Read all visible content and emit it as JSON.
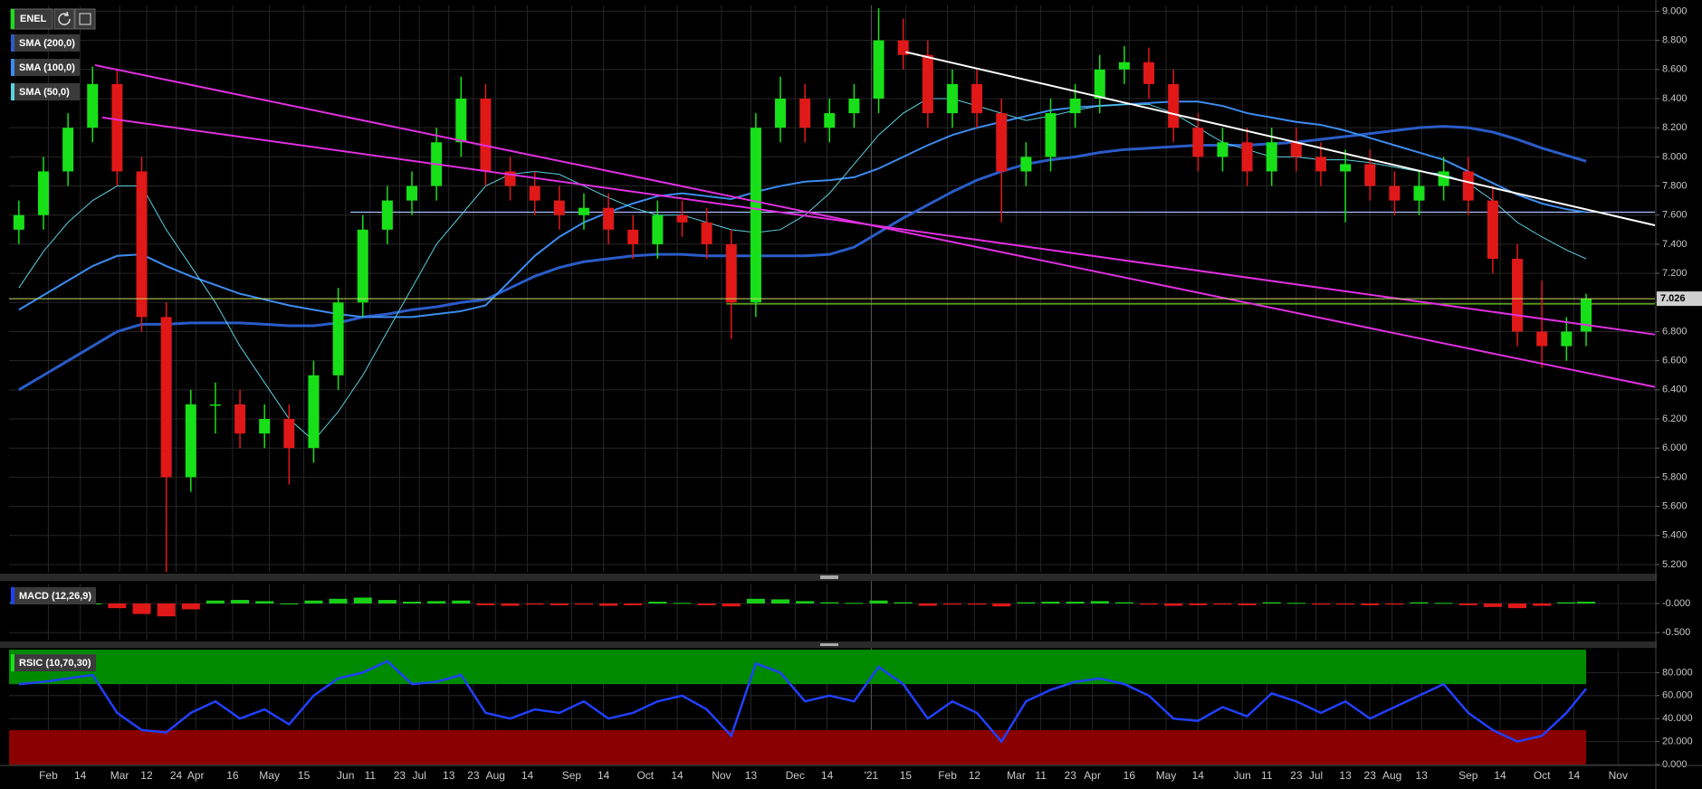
{
  "chart_data": [
    {
      "type": "candlestick",
      "symbol": "ENEL",
      "x": [
        -12,
        -2,
        8,
        18,
        28,
        38,
        48,
        58,
        68,
        78,
        88,
        98,
        108,
        118,
        128,
        138,
        148,
        158,
        168,
        178,
        188,
        198,
        208,
        218,
        228,
        238,
        248,
        258,
        268,
        278,
        288,
        298,
        308,
        318,
        328,
        338,
        348,
        358,
        368,
        378,
        388,
        398,
        408,
        418,
        428,
        438,
        448,
        458,
        468,
        478,
        488,
        498,
        508,
        518,
        528,
        538,
        548,
        558,
        568,
        578,
        588,
        598,
        608,
        618,
        626
      ],
      "open": [
        7.5,
        7.6,
        7.9,
        8.2,
        8.5,
        7.9,
        6.9,
        5.8,
        6.3,
        6.3,
        6.1,
        6.2,
        6.0,
        6.5,
        7.0,
        7.5,
        7.7,
        7.8,
        8.1,
        8.4,
        7.9,
        7.8,
        7.7,
        7.6,
        7.65,
        7.5,
        7.4,
        7.6,
        7.55,
        7.4,
        7.0,
        8.2,
        8.4,
        8.2,
        8.3,
        8.4,
        8.8,
        8.7,
        8.3,
        8.5,
        8.3,
        7.9,
        8.0,
        8.3,
        8.4,
        8.6,
        8.65,
        8.5,
        8.2,
        8.0,
        8.1,
        7.9,
        8.1,
        8.0,
        7.9,
        7.95,
        7.8,
        7.7,
        7.8,
        7.9,
        7.7,
        7.3,
        6.8,
        6.7,
        6.8
      ],
      "high": [
        7.7,
        8.0,
        8.3,
        8.62,
        8.6,
        8.0,
        7.0,
        6.4,
        6.45,
        6.4,
        6.3,
        6.3,
        6.6,
        7.1,
        7.6,
        7.8,
        7.9,
        8.2,
        8.55,
        8.5,
        8.0,
        7.9,
        7.8,
        7.75,
        7.75,
        7.6,
        7.7,
        7.7,
        7.65,
        7.5,
        8.3,
        8.55,
        8.5,
        8.4,
        8.5,
        9.02,
        8.95,
        8.8,
        8.6,
        8.6,
        8.4,
        8.1,
        8.4,
        8.5,
        8.7,
        8.76,
        8.75,
        8.6,
        8.3,
        8.2,
        8.2,
        8.2,
        8.2,
        8.1,
        8.05,
        8.05,
        7.9,
        7.9,
        8.0,
        8.0,
        7.8,
        7.4,
        7.15,
        6.9,
        7.06
      ],
      "low": [
        7.4,
        7.5,
        7.8,
        8.1,
        7.8,
        6.8,
        5.15,
        5.7,
        6.1,
        6.0,
        6.0,
        5.75,
        5.9,
        6.4,
        6.9,
        7.4,
        7.6,
        7.7,
        8.0,
        7.8,
        7.7,
        7.6,
        7.5,
        7.5,
        7.4,
        7.3,
        7.3,
        7.45,
        7.3,
        6.75,
        6.9,
        8.1,
        8.1,
        8.1,
        8.2,
        8.3,
        8.6,
        8.2,
        8.2,
        8.2,
        7.55,
        7.8,
        7.9,
        8.2,
        8.3,
        8.5,
        8.4,
        8.1,
        7.9,
        7.9,
        7.8,
        7.8,
        7.9,
        7.8,
        7.55,
        7.7,
        7.6,
        7.6,
        7.7,
        7.6,
        7.2,
        6.7,
        6.55,
        6.6,
        6.7
      ],
      "close": [
        7.6,
        7.9,
        8.2,
        8.5,
        7.9,
        6.9,
        5.8,
        6.3,
        6.3,
        6.1,
        6.2,
        6.0,
        6.5,
        7.0,
        7.5,
        7.7,
        7.8,
        8.1,
        8.4,
        7.9,
        7.8,
        7.7,
        7.6,
        7.65,
        7.5,
        7.4,
        7.6,
        7.55,
        7.4,
        7.0,
        8.2,
        8.4,
        8.2,
        8.3,
        8.4,
        8.8,
        8.7,
        8.3,
        8.5,
        8.3,
        7.9,
        8.0,
        8.3,
        8.4,
        8.6,
        8.65,
        8.5,
        8.2,
        8.0,
        8.1,
        7.9,
        8.1,
        8.0,
        7.9,
        7.95,
        7.8,
        7.7,
        7.8,
        7.9,
        7.7,
        7.3,
        6.8,
        6.7,
        6.8,
        7.026
      ],
      "up_color": "#18e018",
      "down_color": "#e01818",
      "series": [
        {
          "name": "SMA (200,0)",
          "color": "#2a5cc8",
          "width": 3,
          "values": [
            6.4,
            6.5,
            6.6,
            6.7,
            6.8,
            6.85,
            6.85,
            6.86,
            6.86,
            6.86,
            6.85,
            6.84,
            6.84,
            6.86,
            6.9,
            6.92,
            6.95,
            6.97,
            7.0,
            7.02,
            7.1,
            7.18,
            7.24,
            7.28,
            7.3,
            7.32,
            7.33,
            7.33,
            7.32,
            7.32,
            7.32,
            7.32,
            7.32,
            7.33,
            7.38,
            7.48,
            7.58,
            7.67,
            7.76,
            7.84,
            7.9,
            7.95,
            7.98,
            8.0,
            8.03,
            8.05,
            8.06,
            8.07,
            8.08,
            8.08,
            8.08,
            8.09,
            8.1,
            8.12,
            8.14,
            8.16,
            8.18,
            8.2,
            8.21,
            8.2,
            8.17,
            8.12,
            8.06,
            8.01,
            7.97
          ]
        },
        {
          "name": "SMA (100,0)",
          "color": "#3c8cf0",
          "width": 2,
          "values": [
            6.95,
            7.05,
            7.15,
            7.25,
            7.32,
            7.33,
            7.25,
            7.18,
            7.12,
            7.06,
            7.02,
            6.98,
            6.95,
            6.92,
            6.9,
            6.9,
            6.9,
            6.92,
            6.94,
            6.98,
            7.15,
            7.32,
            7.45,
            7.55,
            7.62,
            7.68,
            7.73,
            7.75,
            7.73,
            7.71,
            7.76,
            7.8,
            7.83,
            7.84,
            7.86,
            7.92,
            8.0,
            8.08,
            8.15,
            8.2,
            8.24,
            8.28,
            8.32,
            8.34,
            8.35,
            8.36,
            8.37,
            8.38,
            8.38,
            8.35,
            8.3,
            8.27,
            8.24,
            8.22,
            8.18,
            8.13,
            8.08,
            8.03,
            7.98,
            7.9,
            7.82,
            7.74,
            7.68,
            7.64,
            7.62
          ]
        },
        {
          "name": "SMA (50,0)",
          "color": "#5ad0e0",
          "width": 1,
          "values": [
            7.1,
            7.35,
            7.55,
            7.7,
            7.8,
            7.8,
            7.5,
            7.25,
            7.0,
            6.7,
            6.45,
            6.2,
            6.05,
            6.25,
            6.5,
            6.8,
            7.1,
            7.4,
            7.6,
            7.8,
            7.88,
            7.9,
            7.88,
            7.8,
            7.72,
            7.65,
            7.6,
            7.6,
            7.55,
            7.5,
            7.48,
            7.5,
            7.6,
            7.75,
            7.95,
            8.15,
            8.3,
            8.4,
            8.4,
            8.35,
            8.3,
            8.25,
            8.28,
            8.32,
            8.35,
            8.36,
            8.36,
            8.3,
            8.2,
            8.1,
            8.05,
            8.0,
            8.0,
            7.98,
            7.98,
            7.96,
            7.93,
            7.9,
            7.88,
            7.82,
            7.7,
            7.55,
            7.45,
            7.36,
            7.3
          ]
        }
      ],
      "lines": [
        {
          "color": "#e030e0",
          "x": [
            19,
            654
          ],
          "y": [
            8.63,
            6.42
          ]
        },
        {
          "color": "#e030e0",
          "x": [
            22,
            654
          ],
          "y": [
            8.27,
            6.78
          ]
        },
        {
          "color": "#ffffff",
          "x": [
            349,
            654
          ],
          "y": [
            8.72,
            7.53
          ]
        }
      ],
      "hlines": [
        {
          "value": 7.62,
          "color": "#a8c0ff",
          "from": 123
        },
        {
          "value": 6.99,
          "color": "#70d020",
          "from": 276
        }
      ],
      "price_line_color": "#c8e060",
      "ylim": [
        5.15,
        9.04
      ],
      "yticks": [
        {
          "value": 5.2,
          "label": "5.200"
        },
        {
          "value": 5.4,
          "label": "5.400"
        },
        {
          "value": 5.6,
          "label": "5.600"
        },
        {
          "value": 5.8,
          "label": "5.800"
        },
        {
          "value": 6.0,
          "label": "6.000"
        },
        {
          "value": 6.2,
          "label": "6.200"
        },
        {
          "value": 6.4,
          "label": "6.400"
        },
        {
          "value": 6.6,
          "label": "6.600"
        },
        {
          "value": 6.8,
          "label": "6.800"
        },
        {
          "value": 7.0,
          "label": "7.000"
        },
        {
          "value": 7.2,
          "label": "7.200"
        },
        {
          "value": 7.4,
          "label": "7.400"
        },
        {
          "value": 7.6,
          "label": "7.600"
        },
        {
          "value": 7.8,
          "label": "7.800"
        },
        {
          "value": 8.0,
          "label": "8.000"
        },
        {
          "value": 8.2,
          "label": "8.200"
        },
        {
          "value": 8.4,
          "label": "8.400"
        },
        {
          "value": 8.6,
          "label": "8.600"
        },
        {
          "value": 8.8,
          "label": "8.800"
        },
        {
          "value": 9.0,
          "label": "9.000"
        }
      ],
      "xlim": [
        -16,
        654
      ],
      "xticks": [
        {
          "value": 0,
          "label": "Feb"
        },
        {
          "value": 13,
          "label": "14"
        },
        {
          "value": 29,
          "label": "Mar"
        },
        {
          "value": 40,
          "label": "12"
        },
        {
          "value": 52,
          "label": "24"
        },
        {
          "value": 60,
          "label": "Apr"
        },
        {
          "value": 75,
          "label": "16"
        },
        {
          "value": 90,
          "label": "May"
        },
        {
          "value": 104,
          "label": "15"
        },
        {
          "value": 121,
          "label": "Jun"
        },
        {
          "value": 131,
          "label": "11"
        },
        {
          "value": 143,
          "label": "23"
        },
        {
          "value": 151,
          "label": "Jul"
        },
        {
          "value": 163,
          "label": "13"
        },
        {
          "value": 173,
          "label": "23"
        },
        {
          "value": 182,
          "label": "Aug"
        },
        {
          "value": 195,
          "label": "14"
        },
        {
          "value": 213,
          "label": "Sep"
        },
        {
          "value": 226,
          "label": "14"
        },
        {
          "value": 243,
          "label": "Oct"
        },
        {
          "value": 256,
          "label": "14"
        },
        {
          "value": 274,
          "label": "Nov"
        },
        {
          "value": 286,
          "label": "13"
        },
        {
          "value": 304,
          "label": "Dec"
        },
        {
          "value": 317,
          "label": "14"
        },
        {
          "value": 335,
          "label": "'21"
        },
        {
          "value": 349,
          "label": "15"
        },
        {
          "value": 366,
          "label": "Feb"
        },
        {
          "value": 377,
          "label": "12"
        },
        {
          "value": 394,
          "label": "Mar"
        },
        {
          "value": 404,
          "label": "11"
        },
        {
          "value": 416,
          "label": "23"
        },
        {
          "value": 425,
          "label": "Apr"
        },
        {
          "value": 440,
          "label": "16"
        },
        {
          "value": 455,
          "label": "May"
        },
        {
          "value": 468,
          "label": "14"
        },
        {
          "value": 486,
          "label": "Jun"
        },
        {
          "value": 496,
          "label": "11"
        },
        {
          "value": 508,
          "label": "23"
        },
        {
          "value": 516,
          "label": "Jul"
        },
        {
          "value": 528,
          "label": "13"
        },
        {
          "value": 538,
          "label": "23"
        },
        {
          "value": 547,
          "label": "Aug"
        },
        {
          "value": 559,
          "label": "13"
        },
        {
          "value": 578,
          "label": "Sep"
        },
        {
          "value": 591,
          "label": "14"
        },
        {
          "value": 608,
          "label": "Oct"
        },
        {
          "value": 621,
          "label": "14"
        },
        {
          "value": 639,
          "label": "Nov"
        }
      ],
      "grid": true
    },
    {
      "type": "bar",
      "title": "MACD (12,26,9)",
      "values": [
        0.02,
        0.03,
        0.02,
        0.0,
        -0.08,
        -0.18,
        -0.22,
        -0.1,
        0.05,
        0.06,
        0.04,
        0.0,
        0.05,
        0.08,
        0.1,
        0.06,
        0.03,
        0.04,
        0.05,
        -0.03,
        -0.04,
        -0.02,
        -0.03,
        -0.02,
        -0.04,
        -0.03,
        0.03,
        0.01,
        -0.03,
        -0.05,
        0.08,
        0.07,
        0.04,
        0.02,
        0.01,
        0.05,
        0.02,
        -0.04,
        -0.02,
        -0.02,
        -0.05,
        0.02,
        0.03,
        0.03,
        0.04,
        0.02,
        -0.02,
        -0.04,
        -0.03,
        -0.02,
        -0.03,
        0.02,
        0.01,
        -0.02,
        -0.02,
        -0.03,
        -0.02,
        0.02,
        0.01,
        -0.03,
        -0.06,
        -0.08,
        -0.04,
        0.02,
        0.03
      ],
      "up_color": "#18d018",
      "down_color": "#e01818",
      "ylim": [
        -0.62,
        0.34
      ],
      "yticks": [
        {
          "value": 0,
          "label": "-0.000"
        },
        {
          "value": -0.5,
          "label": "-0.500"
        }
      ],
      "grid": true
    },
    {
      "type": "line",
      "title": "RSIC (10,70,30)",
      "color": "#2040ff",
      "values": [
        70,
        72,
        75,
        78,
        45,
        30,
        28,
        45,
        55,
        40,
        48,
        35,
        60,
        75,
        80,
        90,
        70,
        72,
        78,
        45,
        40,
        48,
        45,
        55,
        40,
        45,
        55,
        60,
        48,
        25,
        88,
        80,
        55,
        60,
        55,
        85,
        70,
        40,
        55,
        45,
        20,
        55,
        65,
        72,
        75,
        70,
        60,
        40,
        38,
        50,
        42,
        62,
        55,
        45,
        55,
        40,
        50,
        60,
        70,
        45,
        30,
        20,
        25,
        45,
        66
      ],
      "zones": [
        {
          "from": 70,
          "to": 100,
          "color": "#008a00"
        },
        {
          "from": 0,
          "to": 30,
          "color": "#8a0000"
        }
      ],
      "ylim": [
        0,
        100
      ],
      "yticks": [
        {
          "value": 0,
          "label": "0.000"
        },
        {
          "value": 20,
          "label": "20.000"
        },
        {
          "value": 40,
          "label": "40.000"
        },
        {
          "value": 60,
          "label": "60.000"
        },
        {
          "value": 80,
          "label": "80.000"
        }
      ],
      "grid": true
    }
  ]
}
